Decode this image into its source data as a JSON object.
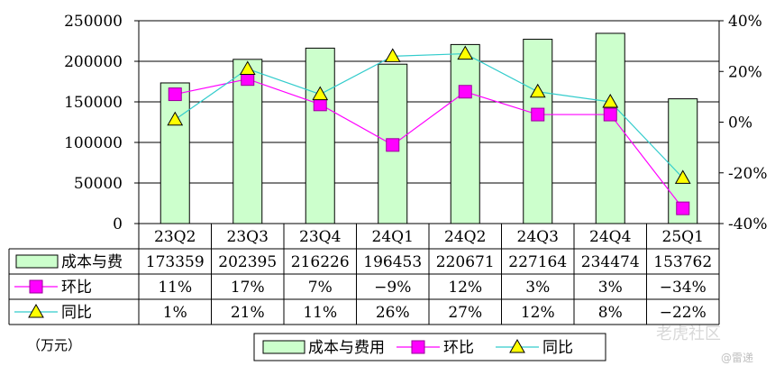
{
  "chart_data": {
    "type": "bar",
    "categories": [
      "23Q2",
      "23Q3",
      "23Q4",
      "24Q1",
      "24Q2",
      "24Q3",
      "24Q4",
      "25Q1"
    ],
    "series": [
      {
        "name": "成本与费用",
        "chart": "bar",
        "axis": "left",
        "values": [
          173359,
          202395,
          216226,
          196453,
          220671,
          227164,
          234474,
          153762
        ],
        "color": "#ccffcc"
      },
      {
        "name": "环比",
        "chart": "line",
        "axis": "right",
        "values": [
          11,
          17,
          7,
          -9,
          12,
          3,
          3,
          -34
        ],
        "labels": [
          "11%",
          "17%",
          "7%",
          "−9%",
          "12%",
          "3%",
          "3%",
          "−34%"
        ],
        "color": "#ff00ff"
      },
      {
        "name": "同比",
        "chart": "line",
        "axis": "right",
        "values": [
          1,
          21,
          11,
          26,
          27,
          12,
          8,
          -22
        ],
        "labels": [
          "1%",
          "21%",
          "11%",
          "26%",
          "27%",
          "12%",
          "8%",
          "−22%"
        ],
        "color": "#33cccc"
      }
    ],
    "y_left": {
      "min": 0,
      "max": 250000,
      "ticks": [
        0,
        50000,
        100000,
        150000,
        200000,
        250000
      ],
      "tick_labels": [
        "0",
        "50000",
        "100000",
        "150000",
        "200000",
        "250000"
      ]
    },
    "y_right": {
      "min": -40,
      "max": 40,
      "ticks": [
        -40,
        -20,
        0,
        20,
        40
      ],
      "tick_labels": [
        "-40%",
        "-20%",
        "0%",
        "20%",
        "40%"
      ]
    },
    "grid": true,
    "legend_position": "bottom",
    "legend_labels": [
      "成本与费用",
      "环比",
      "同比"
    ],
    "table_row_labels": [
      "成本与费",
      "环比",
      "同比"
    ]
  },
  "unit_label": "（万元）",
  "watermark": {
    "main": "老虎社区",
    "sub": "@雷递"
  }
}
